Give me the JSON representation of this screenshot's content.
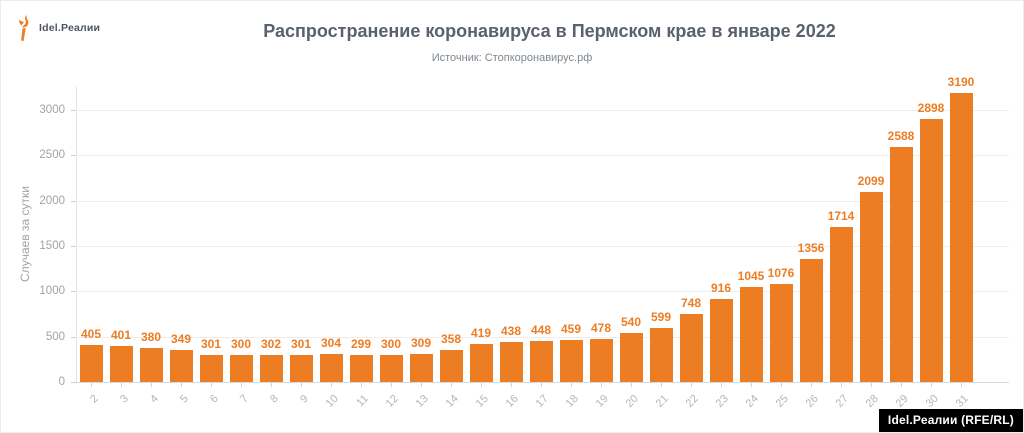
{
  "header": {
    "logo_text": "Idel.Реалии"
  },
  "chart_data": {
    "type": "bar",
    "title": "Распространение коронавируса в Пермском крае в январе 2022",
    "source_label": "Источник: Стопкоронавирус.рф",
    "xlabel": "",
    "ylabel": "Случаев за сутки",
    "categories": [
      "2",
      "3",
      "4",
      "5",
      "6",
      "7",
      "8",
      "9",
      "10",
      "11",
      "12",
      "13",
      "14",
      "15",
      "16",
      "17",
      "18",
      "19",
      "20",
      "21",
      "22",
      "23",
      "24",
      "25",
      "26",
      "27",
      "28",
      "29",
      "30",
      "31"
    ],
    "values": [
      405,
      401,
      380,
      349,
      301,
      300,
      302,
      301,
      304,
      299,
      300,
      309,
      358,
      419,
      438,
      448,
      459,
      478,
      540,
      599,
      748,
      916,
      1045,
      1076,
      1356,
      1714,
      2099,
      2588,
      2898,
      3190
    ],
    "ylim": [
      0,
      3250
    ],
    "yticks": [
      0,
      500,
      1000,
      1500,
      2000,
      2500,
      3000
    ],
    "grid": true,
    "legend": "none",
    "bar_color": "#ED7D23",
    "value_label_color": "#ED7D23"
  },
  "footer": {
    "watermark": "Idel.Реалии (RFE/RL)"
  },
  "colors": {
    "accent_orange": "#ED7D23",
    "title_text": "#59626C",
    "subtitle_text": "#7E8890",
    "axis_text": "#9EA4AA",
    "x_tick_text": "#B3B6B9",
    "gridline": "#EDEDED",
    "axis_line": "#D9D9D9",
    "watermark_bg": "#000000",
    "watermark_text": "#FFFFFF"
  }
}
